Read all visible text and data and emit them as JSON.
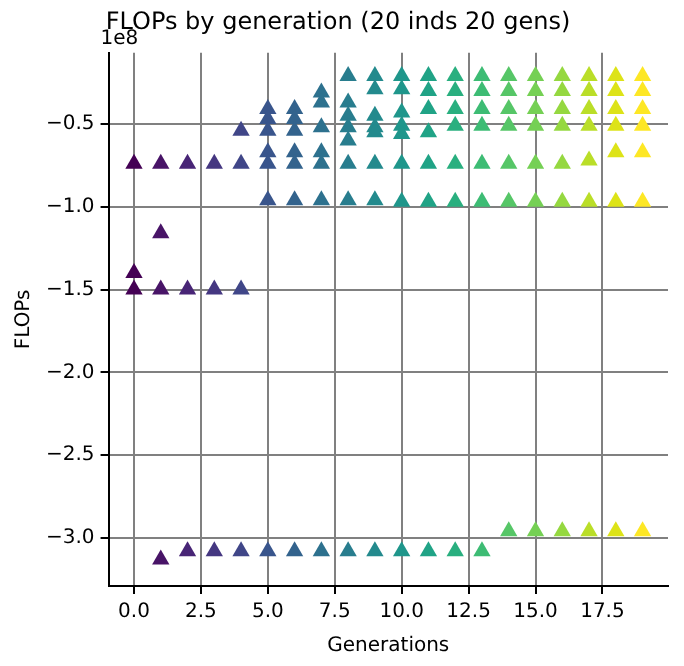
{
  "chart_data": {
    "type": "scatter",
    "title": "FLOPs by generation (20 inds 20 gens)",
    "xlabel": "Generations",
    "ylabel": "FLOPs",
    "annotations": [
      "1e8"
    ],
    "xlim": [
      -0.95,
      19.95
    ],
    "xticks": [
      {
        "value": 0,
        "label": "0.0"
      },
      {
        "value": 2.5,
        "label": "2.5"
      },
      {
        "value": 5,
        "label": "5.0"
      },
      {
        "value": 7.5,
        "label": "7.5"
      },
      {
        "value": 10,
        "label": "10.0"
      },
      {
        "value": 12.5,
        "label": "12.5"
      },
      {
        "value": 15,
        "label": "15.0"
      },
      {
        "value": 17.5,
        "label": "17.5"
      }
    ],
    "ylim": [
      -3.29,
      -0.07
    ],
    "yticks": [
      {
        "value": -3,
        "label": "−3.0"
      },
      {
        "value": -2.5,
        "label": "−2.5"
      },
      {
        "value": -2,
        "label": "−2.0"
      },
      {
        "value": -1.5,
        "label": "−1.5"
      },
      {
        "value": -1,
        "label": "−1.0"
      },
      {
        "value": -0.5,
        "label": "−0.5"
      }
    ],
    "grid": true,
    "marker": "triangle",
    "series": [
      {
        "color": "#440154",
        "x": [
          0,
          0,
          0
        ],
        "values": [
          -0.74,
          -1.4,
          -1.5
        ]
      },
      {
        "color": "#481467",
        "x": [
          1,
          1,
          1,
          1
        ],
        "values": [
          -0.74,
          -1.16,
          -1.5,
          -3.13
        ]
      },
      {
        "color": "#482576",
        "x": [
          2,
          2,
          2
        ],
        "values": [
          -0.74,
          -1.5,
          -3.08
        ]
      },
      {
        "color": "#453781",
        "x": [
          3,
          3,
          3
        ],
        "values": [
          -0.74,
          -1.5,
          -3.08
        ]
      },
      {
        "color": "#404688",
        "x": [
          4,
          4,
          4,
          4
        ],
        "values": [
          -0.54,
          -0.74,
          -1.5,
          -3.08
        ]
      },
      {
        "color": "#39558c",
        "x": [
          5,
          5,
          5,
          5,
          5,
          5,
          5
        ],
        "values": [
          -0.41,
          -0.47,
          -0.54,
          -0.67,
          -0.74,
          -0.96,
          -3.08
        ]
      },
      {
        "color": "#33638d",
        "x": [
          6,
          6,
          6,
          6,
          6,
          6,
          6
        ],
        "values": [
          -0.41,
          -0.47,
          -0.54,
          -0.67,
          -0.74,
          -0.96,
          -3.08
        ]
      },
      {
        "color": "#2d718e",
        "x": [
          7,
          7,
          7,
          7,
          7,
          7,
          7
        ],
        "values": [
          -0.31,
          -0.37,
          -0.52,
          -0.67,
          -0.74,
          -0.96,
          -3.08
        ]
      },
      {
        "color": "#287d8e",
        "x": [
          8,
          8,
          8,
          8,
          8,
          8,
          8,
          8
        ],
        "values": [
          -0.21,
          -0.37,
          -0.45,
          -0.52,
          -0.6,
          -0.74,
          -0.96,
          -3.08
        ]
      },
      {
        "color": "#238a8d",
        "x": [
          9,
          9,
          9,
          9,
          9,
          9,
          9,
          9
        ],
        "values": [
          -0.21,
          -0.29,
          -0.45,
          -0.52,
          -0.55,
          -0.74,
          -0.96,
          -3.08
        ]
      },
      {
        "color": "#1f968b",
        "x": [
          10,
          10,
          10,
          10,
          10,
          10,
          10,
          10
        ],
        "values": [
          -0.21,
          -0.29,
          -0.43,
          -0.51,
          -0.56,
          -0.74,
          -0.97,
          -3.08
        ]
      },
      {
        "color": "#20a386",
        "x": [
          11,
          11,
          11,
          11,
          11,
          11,
          11
        ],
        "values": [
          -0.21,
          -0.3,
          -0.41,
          -0.55,
          -0.74,
          -0.97,
          -3.08
        ]
      },
      {
        "color": "#29af7f",
        "x": [
          12,
          12,
          12,
          12,
          12,
          12,
          12
        ],
        "values": [
          -0.21,
          -0.3,
          -0.41,
          -0.51,
          -0.74,
          -0.97,
          -3.08
        ]
      },
      {
        "color": "#3dbc74",
        "x": [
          13,
          13,
          13,
          13,
          13,
          13,
          13
        ],
        "values": [
          -0.21,
          -0.3,
          -0.41,
          -0.51,
          -0.74,
          -0.97,
          -3.08
        ]
      },
      {
        "color": "#56c667",
        "x": [
          14,
          14,
          14,
          14,
          14,
          14,
          14
        ],
        "values": [
          -0.21,
          -0.3,
          -0.41,
          -0.51,
          -0.74,
          -0.97,
          -2.96
        ]
      },
      {
        "color": "#75d054",
        "x": [
          15,
          15,
          15,
          15,
          15,
          15,
          15
        ],
        "values": [
          -0.21,
          -0.3,
          -0.41,
          -0.51,
          -0.74,
          -0.97,
          -2.96
        ]
      },
      {
        "color": "#95d840",
        "x": [
          16,
          16,
          16,
          16,
          16,
          16,
          16
        ],
        "values": [
          -0.21,
          -0.3,
          -0.41,
          -0.51,
          -0.74,
          -0.97,
          -2.96
        ]
      },
      {
        "color": "#bade28",
        "x": [
          17,
          17,
          17,
          17,
          17,
          17,
          17
        ],
        "values": [
          -0.21,
          -0.3,
          -0.41,
          -0.51,
          -0.72,
          -0.97,
          -2.96
        ]
      },
      {
        "color": "#dde318",
        "x": [
          18,
          18,
          18,
          18,
          18,
          18,
          18
        ],
        "values": [
          -0.21,
          -0.3,
          -0.41,
          -0.51,
          -0.67,
          -0.97,
          -2.96
        ]
      },
      {
        "color": "#fde725",
        "x": [
          19,
          19,
          19,
          19,
          19,
          19,
          19
        ],
        "values": [
          -0.21,
          -0.3,
          -0.41,
          -0.51,
          -0.67,
          -0.97,
          -2.96
        ]
      }
    ]
  }
}
